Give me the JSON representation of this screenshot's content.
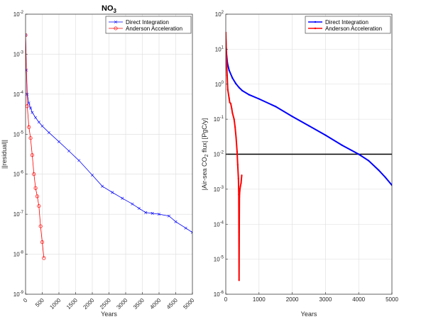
{
  "chart_data": [
    {
      "type": "line",
      "title": "NO",
      "title_subscript": "3",
      "xlabel": "Years",
      "ylabel": "||residual||",
      "xscale": "linear",
      "yscale": "log",
      "xlim": [
        0,
        5000
      ],
      "ylim": [
        1e-09,
        0.01
      ],
      "grid": true,
      "legend_position": "top-right",
      "x_tick_rotation": 45,
      "x_ticks": [
        0,
        500,
        1000,
        1500,
        2000,
        2500,
        3000,
        3500,
        4000,
        4500,
        5000
      ],
      "x_tick_labels": [
        "0",
        "500",
        "1000",
        "1500",
        "2000",
        "2500",
        "3000",
        "3500",
        "4000",
        "4500",
        "5000"
      ],
      "y_ticks": [
        1e-09,
        1e-08,
        1e-07,
        1e-06,
        1e-05,
        0.0001,
        0.001,
        0.01
      ],
      "y_tick_labels": [
        {
          "base": "10",
          "exp": "-9"
        },
        {
          "base": "10",
          "exp": "-8"
        },
        {
          "base": "10",
          "exp": "-7"
        },
        {
          "base": "10",
          "exp": "-6"
        },
        {
          "base": "10",
          "exp": "-5"
        },
        {
          "base": "10",
          "exp": "-4"
        },
        {
          "base": "10",
          "exp": "-3"
        },
        {
          "base": "10",
          "exp": "-2"
        }
      ],
      "series": [
        {
          "name": "Direct Integration",
          "color": "#0000ff",
          "marker": "x",
          "x": [
            0,
            25,
            50,
            100,
            150,
            200,
            300,
            400,
            500,
            700,
            1000,
            1300,
            1600,
            2000,
            2300,
            2600,
            2900,
            3200,
            3400,
            3600,
            3800,
            4000,
            4300,
            4500,
            4800,
            5000
          ],
          "y": [
            0.003,
            0.0004,
            0.0001,
            6e-05,
            4.5e-05,
            3.5e-05,
            2.6e-05,
            2e-05,
            1.6e-05,
            1.1e-05,
            6.5e-06,
            3.8e-06,
            2.2e-06,
            9.5e-07,
            5e-07,
            3.5e-07,
            2.5e-07,
            1.8e-07,
            1.4e-07,
            1.1e-07,
            1.05e-07,
            1e-07,
            9e-08,
            6.5e-08,
            4.5e-08,
            3.5e-08
          ]
        },
        {
          "name": "Anderson Acceleration",
          "color": "#ff0000",
          "marker": "o",
          "x": [
            0,
            50,
            100,
            150,
            200,
            250,
            300,
            350,
            400,
            450,
            500,
            550
          ],
          "y": [
            0.003,
            5e-05,
            1.5e-05,
            8e-06,
            3e-06,
            1e-06,
            4.5e-07,
            2.8e-07,
            1.6e-07,
            5e-08,
            2e-08,
            8e-09
          ]
        }
      ]
    },
    {
      "type": "line",
      "title": "",
      "xlabel": "Years",
      "ylabel": "|Air-sea CO",
      "ylabel_subscript": "2",
      "ylabel_suffix": " flux| [PgC/y]",
      "xscale": "linear",
      "yscale": "log",
      "xlim": [
        0,
        5000
      ],
      "ylim": [
        1e-06,
        100
      ],
      "grid": true,
      "legend_position": "top-right",
      "x_ticks": [
        0,
        1000,
        2000,
        3000,
        4000,
        5000
      ],
      "x_tick_labels": [
        "0",
        "1000",
        "2000",
        "3000",
        "4000",
        "5000"
      ],
      "y_ticks": [
        1e-06,
        1e-05,
        0.0001,
        0.001,
        0.01,
        0.1,
        1,
        10,
        100
      ],
      "y_tick_labels": [
        {
          "base": "10",
          "exp": "-6"
        },
        {
          "base": "10",
          "exp": "-5"
        },
        {
          "base": "10",
          "exp": "-4"
        },
        {
          "base": "10",
          "exp": "-3"
        },
        {
          "base": "10",
          "exp": "-2"
        },
        {
          "base": "10",
          "exp": "-1"
        },
        {
          "base": "10",
          "exp": "0"
        },
        {
          "base": "10",
          "exp": "1"
        },
        {
          "base": "10",
          "exp": "2"
        }
      ],
      "reference_line": {
        "y": 0.01,
        "color": "#000000"
      },
      "series": [
        {
          "name": "Direct Integration",
          "color": "#0000ff",
          "marker": "point",
          "x": [
            0,
            20,
            50,
            100,
            200,
            300,
            400,
            500,
            700,
            1000,
            1500,
            2000,
            2500,
            3000,
            3500,
            4000,
            4300,
            4600,
            4800,
            5000
          ],
          "y": [
            20,
            8,
            4,
            2.5,
            1.5,
            1.05,
            0.8,
            0.65,
            0.5,
            0.38,
            0.23,
            0.12,
            0.065,
            0.035,
            0.018,
            0.01,
            0.0065,
            0.0035,
            0.0022,
            0.0013
          ]
        },
        {
          "name": "Anderson Acceleration",
          "color": "#ff0000",
          "marker": "point",
          "x": [
            0,
            10,
            20,
            40,
            60,
            100,
            120,
            150,
            180,
            200,
            250,
            280,
            310,
            340,
            360,
            380,
            390,
            395,
            400,
            405,
            410,
            420,
            440,
            460,
            480
          ],
          "y": [
            30,
            12,
            6,
            1.8,
            0.7,
            0.4,
            0.3,
            0.28,
            0.2,
            0.15,
            0.1,
            0.06,
            0.03,
            0.012,
            0.005,
            0.002,
            0.0007,
            6e-05,
            2.5e-06,
            0.0001,
            0.0006,
            0.0009,
            0.0012,
            0.0015,
            0.0025
          ]
        }
      ]
    }
  ]
}
